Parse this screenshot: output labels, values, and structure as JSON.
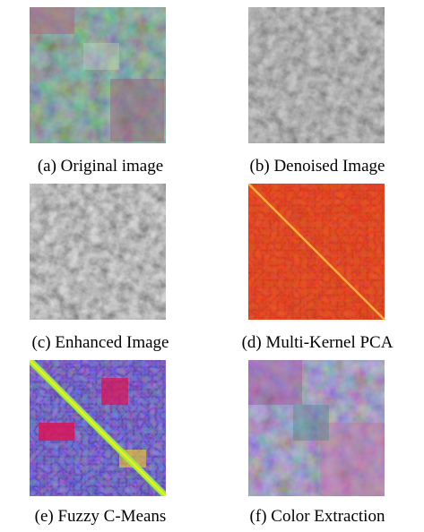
{
  "figures": [
    {
      "caption": "(a) Original image"
    },
    {
      "caption": "(b) Denoised Image"
    },
    {
      "caption": "(c) Enhanced Image"
    },
    {
      "caption": "(d) Multi-Kernel PCA"
    },
    {
      "caption": "(e) Fuzzy C-Means"
    },
    {
      "caption": "(f) Color Extraction"
    }
  ]
}
